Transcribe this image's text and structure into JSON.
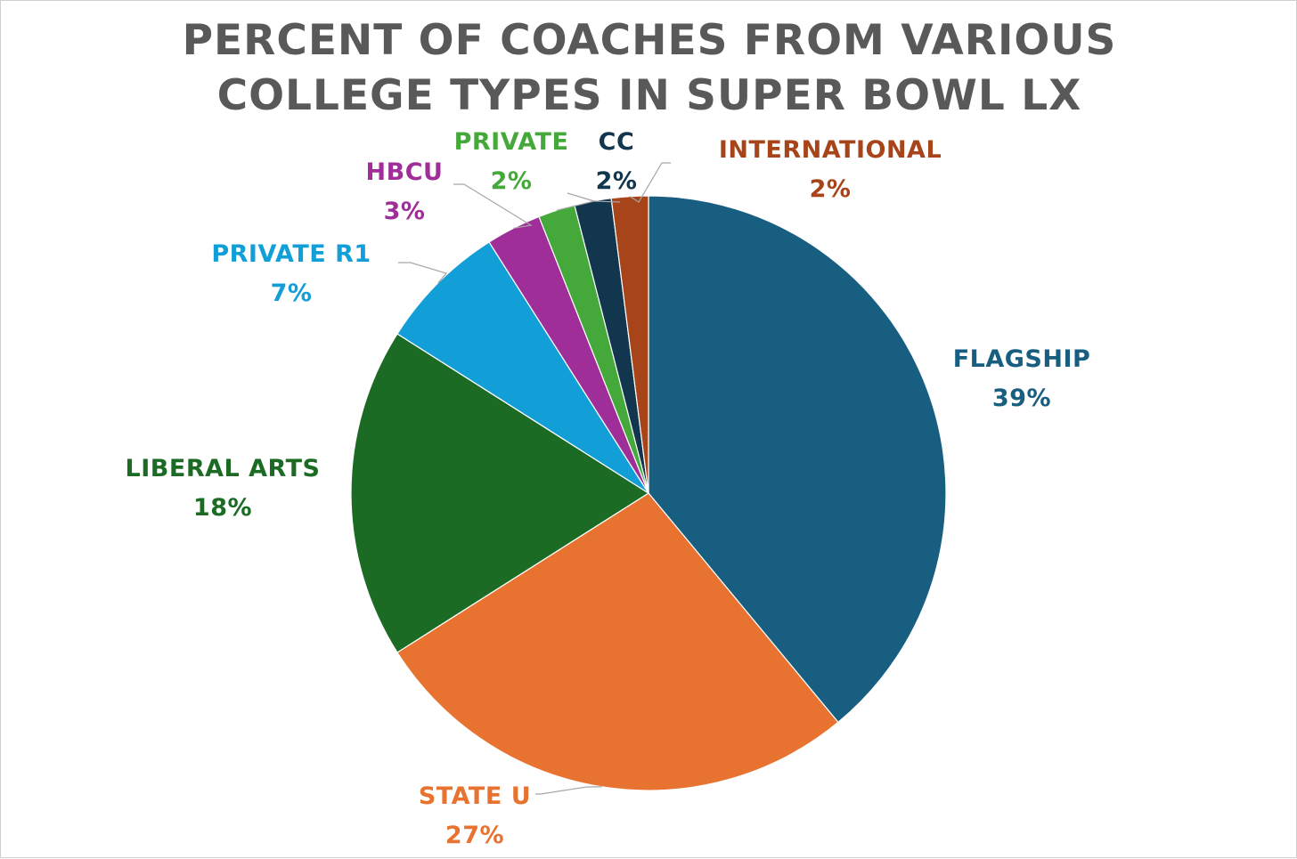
{
  "chart_data": {
    "type": "pie",
    "title_lines": [
      "PERCENT OF COACHES FROM VARIOUS",
      "COLLEGE TYPES IN SUPER BOWL LX"
    ],
    "start_angle_deg": 0,
    "direction": "clockwise",
    "legend": "none (category labels beside slices)",
    "slices": [
      {
        "name": "FLAGSHIP",
        "value": 39,
        "label": "39%",
        "color": "#175E80"
      },
      {
        "name": "STATE U",
        "value": 27,
        "label": "27%",
        "color": "#E87331"
      },
      {
        "name": "LIBERAL ARTS",
        "value": 18,
        "label": "18%",
        "color": "#1B6B24"
      },
      {
        "name": "PRIVATE R1",
        "value": 7,
        "label": "7%",
        "color": "#129FD7"
      },
      {
        "name": "HBCU",
        "value": 3,
        "label": "3%",
        "color": "#A02E99"
      },
      {
        "name": "PRIVATE",
        "value": 2,
        "label": "2%",
        "color": "#44A93A"
      },
      {
        "name": "CC",
        "value": 2,
        "label": "2%",
        "color": "#11364E"
      },
      {
        "name": "INTERNATIONAL",
        "value": 2,
        "label": "2%",
        "color": "#A7441A"
      }
    ]
  }
}
